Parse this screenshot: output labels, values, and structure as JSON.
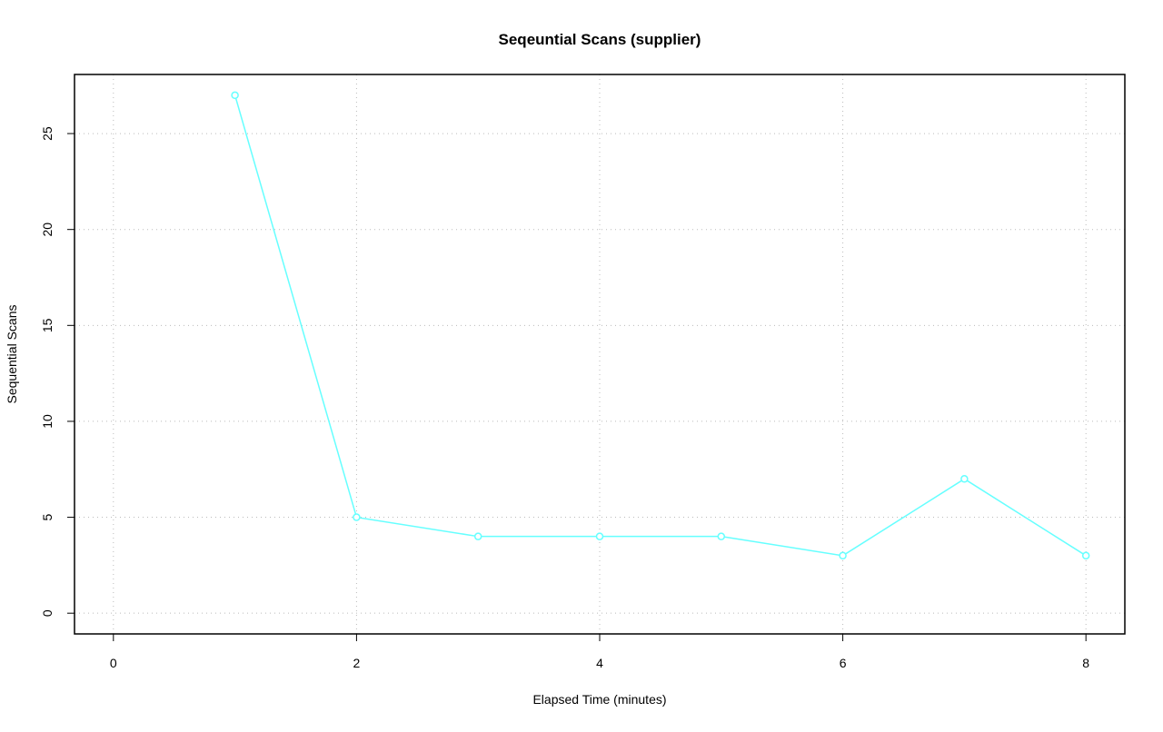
{
  "chart_data": {
    "type": "line",
    "title": "Seqeuntial Scans (supplier)",
    "x_label": "Elapsed Time (minutes)",
    "y_label": "Sequential Scans",
    "x": [
      1,
      2,
      3,
      4,
      5,
      6,
      7,
      8
    ],
    "series": [
      {
        "name": "supplier",
        "color": "#66ffff",
        "values": [
          27,
          5,
          4,
          4,
          4,
          3,
          7,
          3
        ]
      }
    ],
    "xlim": [
      -0.32,
      8.32
    ],
    "xticks": [
      0,
      2,
      4,
      6,
      8
    ],
    "ylim": [
      -1.08,
      28.08
    ],
    "yticks": [
      0,
      5,
      10,
      15,
      20,
      25
    ],
    "grid": true
  }
}
